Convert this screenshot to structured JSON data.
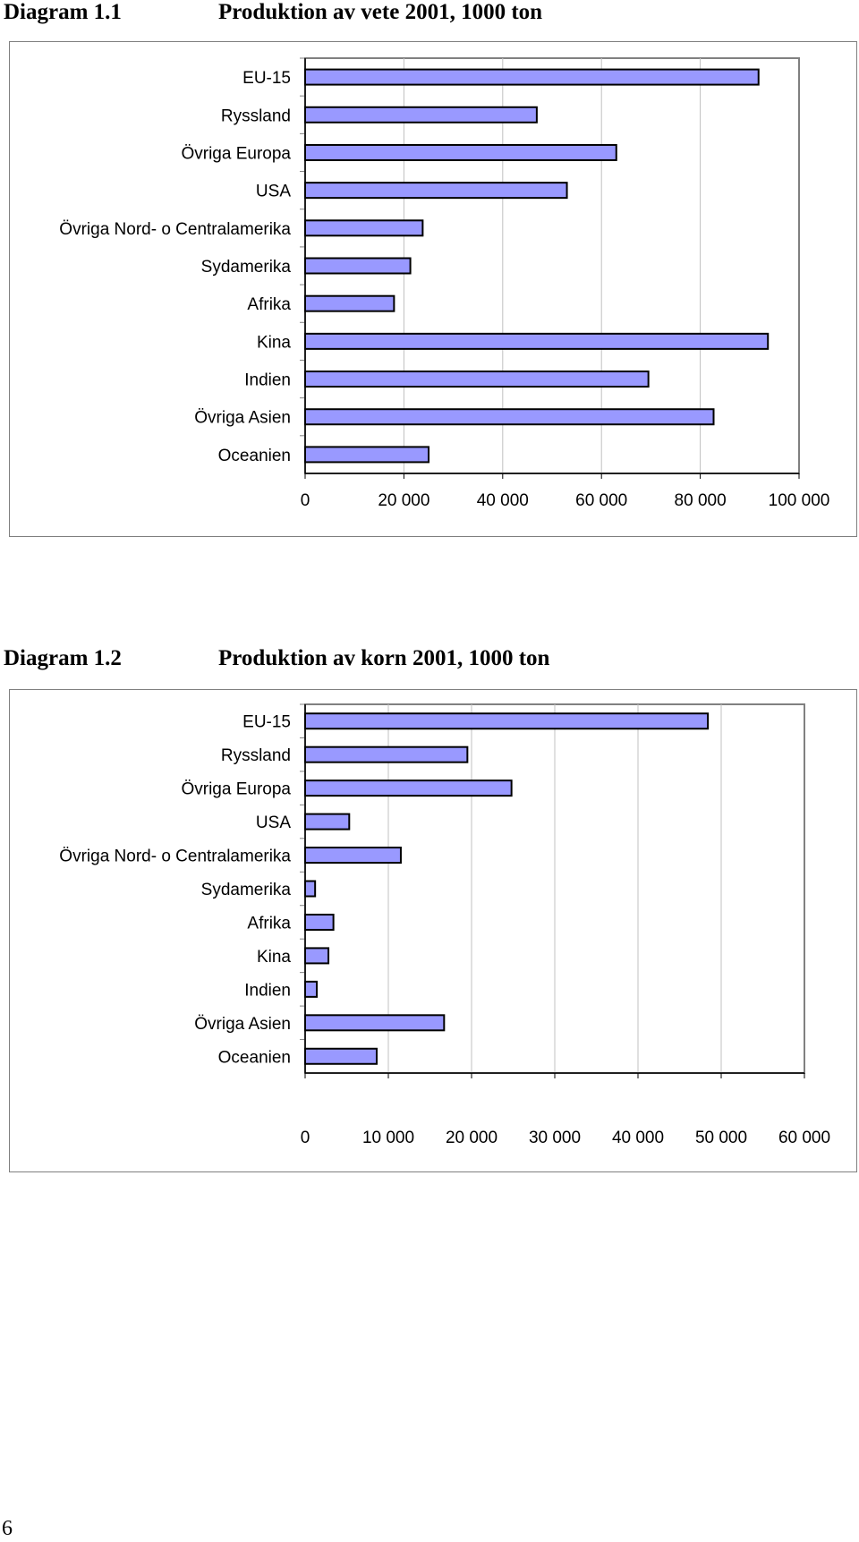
{
  "page_number": "6",
  "chart_data": [
    {
      "type": "bar",
      "orientation": "horizontal",
      "label": "Diagram 1.1",
      "title": "Produktion av vete 2001, 1000 ton",
      "categories": [
        "EU-15",
        "Ryssland",
        "Övriga Europa",
        "USA",
        "Övriga Nord- o Centralamerika",
        "Sydamerika",
        "Afrika",
        "Kina",
        "Indien",
        "Övriga Asien",
        "Oceanien"
      ],
      "values": [
        91800,
        46900,
        63000,
        53000,
        23800,
        21300,
        18000,
        93700,
        69500,
        82700,
        25000
      ],
      "xlim": [
        0,
        100000
      ],
      "ticks": [
        0,
        20000,
        40000,
        60000,
        80000,
        100000
      ],
      "tick_labels": [
        "0",
        "20 000",
        "40 000",
        "60 000",
        "80 000",
        "100 000"
      ],
      "grid": true,
      "legend": "none",
      "bar_color": "#9999ff"
    },
    {
      "type": "bar",
      "orientation": "horizontal",
      "label": "Diagram 1.2",
      "title": "Produktion av korn 2001, 1000 ton",
      "categories": [
        "EU-15",
        "Ryssland",
        "Övriga Europa",
        "USA",
        "Övriga Nord- o Centralamerika",
        "Sydamerika",
        "Afrika",
        "Kina",
        "Indien",
        "Övriga Asien",
        "Oceanien"
      ],
      "values": [
        48400,
        19500,
        24800,
        5300,
        11500,
        1200,
        3400,
        2800,
        1400,
        16700,
        8600
      ],
      "xlim": [
        0,
        60000
      ],
      "ticks": [
        0,
        10000,
        20000,
        30000,
        40000,
        50000,
        60000
      ],
      "tick_labels": [
        "0",
        "10 000",
        "20 000",
        "30 000",
        "40 000",
        "50 000",
        "60 000"
      ],
      "grid": true,
      "legend": "none",
      "bar_color": "#9999ff"
    }
  ]
}
